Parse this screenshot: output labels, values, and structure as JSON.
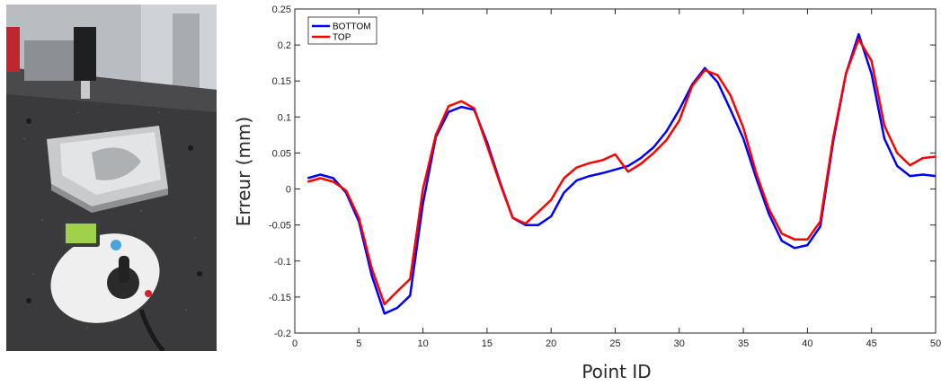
{
  "photo": {
    "description_icon": "cmm-machine-photo"
  },
  "chart_data": {
    "type": "line",
    "title": "",
    "xlabel": "Point ID",
    "ylabel": "Erreur (mm)",
    "xlim": [
      0,
      50
    ],
    "ylim": [
      -0.2,
      0.25
    ],
    "x_ticks": [
      0,
      5,
      10,
      15,
      20,
      25,
      30,
      35,
      40,
      45,
      50
    ],
    "y_ticks": [
      -0.2,
      -0.15,
      -0.1,
      -0.05,
      0,
      0.05,
      0.1,
      0.15,
      0.2,
      0.25
    ],
    "grid": false,
    "legend_position": "top-left",
    "x": [
      1,
      2,
      3,
      4,
      5,
      6,
      7,
      8,
      9,
      10,
      11,
      12,
      13,
      14,
      15,
      16,
      17,
      18,
      19,
      20,
      21,
      22,
      23,
      24,
      25,
      26,
      27,
      28,
      29,
      30,
      31,
      32,
      33,
      34,
      35,
      36,
      37,
      38,
      39,
      40,
      41,
      42,
      43,
      44,
      45,
      46,
      47,
      48,
      49,
      50
    ],
    "series": [
      {
        "name": "BOTTOM",
        "color": "#0000ff",
        "values": [
          0.015,
          0.02,
          0.015,
          -0.005,
          -0.045,
          -0.12,
          -0.173,
          -0.165,
          -0.148,
          -0.02,
          0.072,
          0.107,
          0.114,
          0.11,
          0.065,
          0.01,
          -0.04,
          -0.05,
          -0.05,
          -0.038,
          -0.005,
          0.012,
          0.018,
          0.022,
          0.027,
          0.032,
          0.043,
          0.058,
          0.08,
          0.11,
          0.145,
          0.168,
          0.148,
          0.11,
          0.07,
          0.015,
          -0.035,
          -0.072,
          -0.082,
          -0.078,
          -0.052,
          0.065,
          0.16,
          0.215,
          0.16,
          0.07,
          0.032,
          0.018,
          0.02,
          0.018
        ]
      },
      {
        "name": "TOP",
        "color": "#ff0000",
        "values": [
          0.01,
          0.015,
          0.01,
          -0.002,
          -0.04,
          -0.11,
          -0.16,
          -0.142,
          -0.125,
          0.0,
          0.075,
          0.115,
          0.122,
          0.112,
          0.06,
          0.008,
          -0.04,
          -0.048,
          -0.032,
          -0.015,
          0.015,
          0.03,
          0.036,
          0.04,
          0.048,
          0.024,
          0.035,
          0.05,
          0.068,
          0.095,
          0.143,
          0.165,
          0.158,
          0.13,
          0.085,
          0.022,
          -0.028,
          -0.062,
          -0.07,
          -0.07,
          -0.045,
          0.07,
          0.16,
          0.208,
          0.178,
          0.088,
          0.05,
          0.033,
          0.043,
          0.045
        ]
      }
    ]
  }
}
